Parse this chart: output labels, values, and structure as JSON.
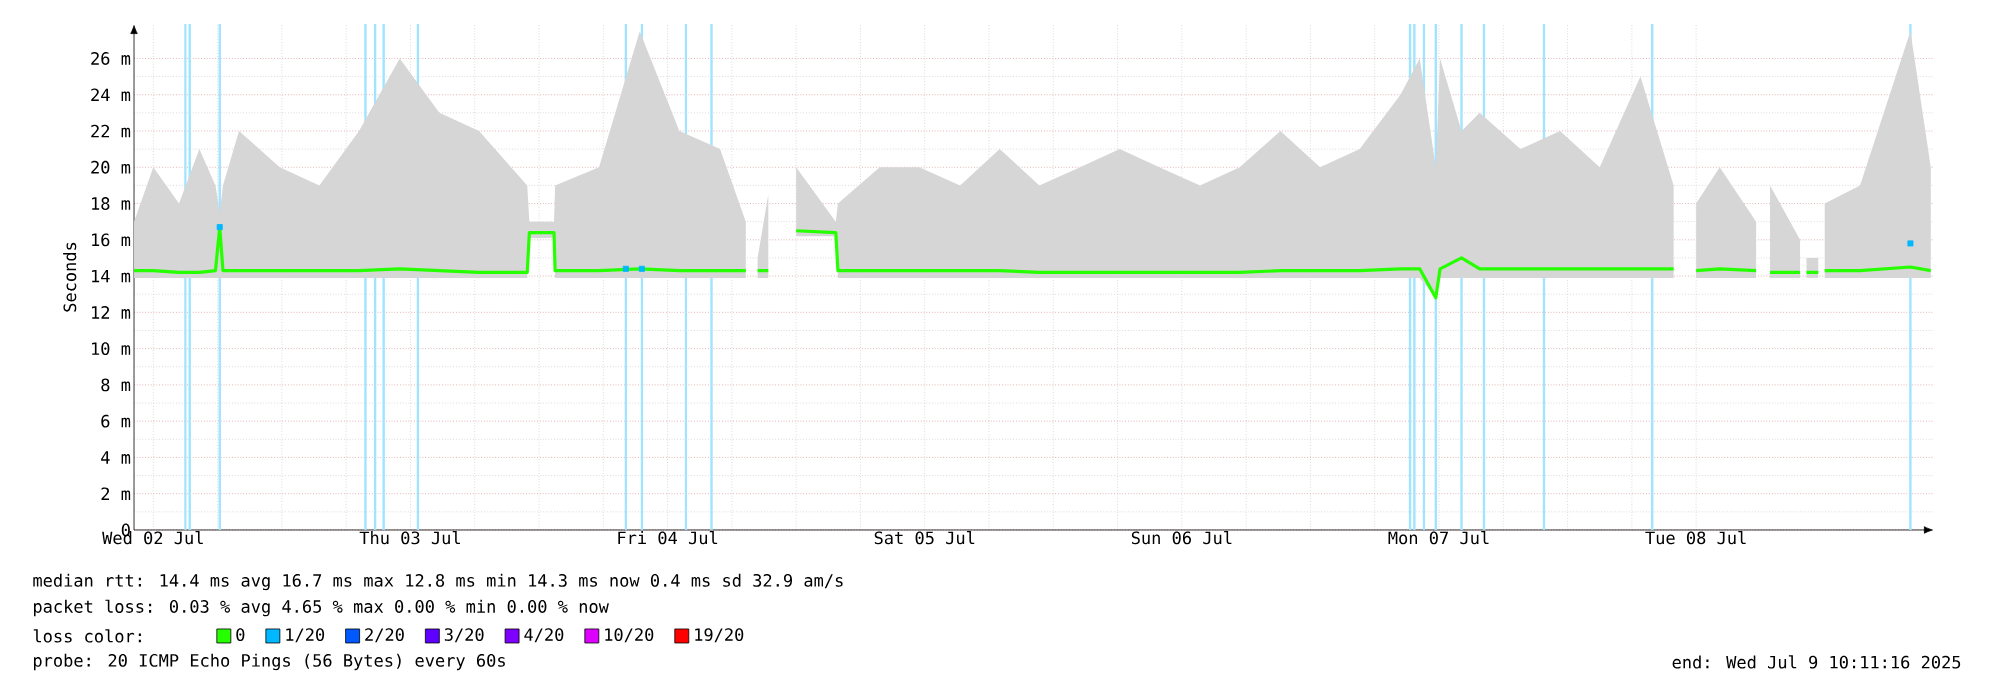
{
  "chart_data": {
    "type": "line",
    "ylabel": "Seconds",
    "xlim": [
      "2025-07-02T10:12",
      "2025-07-09T10:12"
    ],
    "ylim": [
      0,
      27.9
    ],
    "xticks": [
      {
        "value": "2025-07-02T12:00",
        "label": "Wed 02 Jul"
      },
      {
        "value": "2025-07-03T12:00",
        "label": "Thu 03 Jul"
      },
      {
        "value": "2025-07-04T12:00",
        "label": "Fri 04 Jul"
      },
      {
        "value": "2025-07-05T12:00",
        "label": "Sat 05 Jul"
      },
      {
        "value": "2025-07-06T12:00",
        "label": "Sun 06 Jul"
      },
      {
        "value": "2025-07-07T12:00",
        "label": "Mon 07 Jul"
      },
      {
        "value": "2025-07-08T12:00",
        "label": "Tue 08 Jul"
      }
    ],
    "yticks": [
      {
        "value": 0,
        "label": "0"
      },
      {
        "value": 2,
        "label": "2 m"
      },
      {
        "value": 4,
        "label": "4 m"
      },
      {
        "value": 6,
        "label": "6 m"
      },
      {
        "value": 8,
        "label": "8 m"
      },
      {
        "value": 10,
        "label": "10 m"
      },
      {
        "value": 12,
        "label": "12 m"
      },
      {
        "value": 14,
        "label": "14 m"
      },
      {
        "value": 16,
        "label": "16 m"
      },
      {
        "value": 18,
        "label": "18 m"
      },
      {
        "value": 20,
        "label": "20 m"
      },
      {
        "value": 22,
        "label": "22 m"
      },
      {
        "value": 24,
        "label": "24 m"
      },
      {
        "value": 26,
        "label": "26 m"
      }
    ],
    "grid": true,
    "legend": "bottom",
    "legend_title": "loss color:",
    "x": [
      "2025-07-02T10:12",
      "2025-07-02T12:00",
      "2025-07-02T14:24",
      "2025-07-02T16:18",
      "2025-07-02T17:48",
      "2025-07-02T18:12",
      "2025-07-02T18:30",
      "2025-07-02T20:00",
      "2025-07-02T23:48",
      "2025-07-03T03:30",
      "2025-07-03T07:12",
      "2025-07-03T11:00",
      "2025-07-03T14:42",
      "2025-07-03T18:24",
      "2025-07-03T22:54",
      "2025-07-03T23:06",
      "2025-07-04T01:24",
      "2025-07-04T01:30",
      "2025-07-04T05:36",
      "2025-07-04T09:24",
      "2025-07-04T13:06",
      "2025-07-04T16:54",
      "2025-07-04T19:18",
      "2025-07-04T20:00",
      "2025-07-04T20:24",
      "2025-07-04T21:24",
      "2025-07-04T22:36",
      "2025-07-05T00:00",
      "2025-07-05T03:42",
      "2025-07-05T03:54",
      "2025-07-05T07:48",
      "2025-07-05T11:30",
      "2025-07-05T15:18",
      "2025-07-05T19:00",
      "2025-07-05T22:42",
      "2025-07-06T02:30",
      "2025-07-06T06:12",
      "2025-07-06T09:54",
      "2025-07-06T13:42",
      "2025-07-06T17:24",
      "2025-07-06T21:12",
      "2025-07-07T00:54",
      "2025-07-07T04:36",
      "2025-07-07T08:24",
      "2025-07-07T10:12",
      "2025-07-07T11:42",
      "2025-07-07T12:06",
      "2025-07-07T14:06",
      "2025-07-07T15:48",
      "2025-07-07T19:36",
      "2025-07-07T23:18",
      "2025-07-08T03:00",
      "2025-07-08T06:48",
      "2025-07-08T09:54",
      "2025-07-08T11:00",
      "2025-07-08T12:00",
      "2025-07-08T14:12",
      "2025-07-08T17:36",
      "2025-07-08T18:18",
      "2025-07-08T18:54",
      "2025-07-08T21:42",
      "2025-07-08T22:06",
      "2025-07-08T22:18",
      "2025-07-08T23:24",
      "2025-07-08T23:36",
      "2025-07-09T00:00",
      "2025-07-09T03:18",
      "2025-07-09T08:00",
      "2025-07-09T09:54"
    ],
    "series": [
      {
        "name": "0",
        "color": "#26ff00",
        "values": [
          14.3,
          14.3,
          14.2,
          14.2,
          14.3,
          16.7,
          14.3,
          14.3,
          14.3,
          14.3,
          14.3,
          14.4,
          14.3,
          14.2,
          14.2,
          16.4,
          16.4,
          14.3,
          14.3,
          14.4,
          14.3,
          14.3,
          14.3,
          null,
          14.3,
          14.3,
          null,
          16.5,
          16.4,
          14.3,
          14.3,
          14.3,
          14.3,
          14.3,
          14.2,
          14.2,
          14.2,
          14.2,
          14.2,
          14.2,
          14.3,
          14.3,
          14.3,
          14.4,
          14.4,
          12.8,
          14.4,
          15.0,
          14.4,
          14.4,
          14.4,
          14.4,
          14.4,
          14.4,
          null,
          14.3,
          14.4,
          14.3,
          null,
          14.2,
          14.2,
          null,
          14.2,
          14.2,
          null,
          14.3,
          14.3,
          14.5,
          14.3
        ],
        "lower": [
          13.9,
          13.9,
          13.9,
          13.9,
          13.9,
          13.9,
          13.9,
          13.9,
          13.9,
          13.9,
          13.9,
          13.9,
          13.9,
          13.9,
          13.9,
          16.1,
          16.1,
          13.9,
          13.9,
          13.9,
          13.9,
          13.9,
          13.9,
          null,
          13.9,
          13.9,
          null,
          16.2,
          16.2,
          13.9,
          13.9,
          13.9,
          13.9,
          13.9,
          13.9,
          13.9,
          13.9,
          13.9,
          13.9,
          13.9,
          13.9,
          13.9,
          13.9,
          13.9,
          13.9,
          12.8,
          13.9,
          13.9,
          13.9,
          13.9,
          13.9,
          13.9,
          13.9,
          13.9,
          null,
          13.9,
          13.9,
          13.9,
          null,
          13.9,
          13.9,
          null,
          13.9,
          13.9,
          null,
          13.9,
          13.9,
          13.9,
          13.9
        ],
        "upper": [
          17,
          20,
          18,
          21,
          19,
          17.5,
          19,
          22,
          20,
          19,
          22,
          26,
          23,
          22,
          19,
          17,
          17,
          19,
          20,
          27.5,
          22,
          21,
          17,
          null,
          15,
          18.5,
          null,
          20,
          17,
          18,
          20,
          20,
          19,
          21,
          19,
          20,
          21,
          20,
          19,
          20,
          22,
          20,
          21,
          24,
          26,
          20,
          26,
          22,
          23,
          21,
          22,
          20,
          25,
          19,
          null,
          18,
          20,
          17,
          null,
          19,
          16,
          null,
          15,
          15,
          null,
          18,
          19,
          27.5,
          20
        ]
      },
      {
        "name": "1/20",
        "color": "#00b8ff",
        "type": "scatter",
        "marker": "square",
        "x": [
          "2025-07-02T18:12",
          "2025-07-04T08:06",
          "2025-07-04T09:36",
          "2025-07-09T08:00"
        ],
        "values": [
          16.7,
          14.4,
          14.4,
          15.8
        ]
      },
      {
        "name": "2/20",
        "color": "#0059ff",
        "type": "scatter",
        "marker": "square",
        "values": [
          null,
          null,
          null,
          null,
          null,
          null,
          null,
          null,
          null,
          null,
          null,
          null,
          null,
          null,
          null,
          null,
          null,
          null,
          null,
          null,
          null,
          null,
          null,
          null,
          null,
          null,
          null,
          null,
          null,
          null,
          null,
          null,
          null,
          null,
          null,
          null,
          null,
          null,
          null,
          null,
          null,
          null,
          null,
          null,
          null,
          null,
          null,
          null,
          null,
          null,
          null,
          null,
          null,
          null,
          null,
          null,
          null,
          null,
          null,
          null,
          null,
          null,
          null,
          null,
          null,
          null,
          null,
          null,
          null
        ]
      },
      {
        "name": "3/20",
        "color": "#5e00ff",
        "type": "scatter",
        "marker": "square",
        "values": [
          null,
          null,
          null,
          null,
          null,
          null,
          null,
          null,
          null,
          null,
          null,
          null,
          null,
          null,
          null,
          null,
          null,
          null,
          null,
          null,
          null,
          null,
          null,
          null,
          null,
          null,
          null,
          null,
          null,
          null,
          null,
          null,
          null,
          null,
          null,
          null,
          null,
          null,
          null,
          null,
          null,
          null,
          null,
          null,
          null,
          null,
          null,
          null,
          null,
          null,
          null,
          null,
          null,
          null,
          null,
          null,
          null,
          null,
          null,
          null,
          null,
          null,
          null,
          null,
          null,
          null,
          null,
          null,
          null
        ]
      },
      {
        "name": "4/20",
        "color": "#7e00ff",
        "type": "scatter",
        "marker": "square",
        "values": [
          null,
          null,
          null,
          null,
          null,
          null,
          null,
          null,
          null,
          null,
          null,
          null,
          null,
          null,
          null,
          null,
          null,
          null,
          null,
          null,
          null,
          null,
          null,
          null,
          null,
          null,
          null,
          null,
          null,
          null,
          null,
          null,
          null,
          null,
          null,
          null,
          null,
          null,
          null,
          null,
          null,
          null,
          null,
          null,
          null,
          null,
          null,
          null,
          null,
          null,
          null,
          null,
          null,
          null,
          null,
          null,
          null,
          null,
          null,
          null,
          null,
          null,
          null,
          null,
          null,
          null,
          null,
          null,
          null
        ]
      },
      {
        "name": "10/20",
        "color": "#dd00ff",
        "type": "scatter",
        "marker": "square",
        "values": [
          null,
          null,
          null,
          null,
          null,
          null,
          null,
          null,
          null,
          null,
          null,
          null,
          null,
          null,
          null,
          null,
          null,
          null,
          null,
          null,
          null,
          null,
          null,
          null,
          null,
          null,
          null,
          null,
          null,
          null,
          null,
          null,
          null,
          null,
          null,
          null,
          null,
          null,
          null,
          null,
          null,
          null,
          null,
          null,
          null,
          null,
          null,
          null,
          null,
          null,
          null,
          null,
          null,
          null,
          null,
          null,
          null,
          null,
          null,
          null,
          null,
          null,
          null,
          null,
          null,
          null,
          null,
          null,
          null
        ]
      },
      {
        "name": "19/20",
        "color": "#ff0000",
        "type": "scatter",
        "marker": "square",
        "values": [
          null,
          null,
          null,
          null,
          null,
          null,
          null,
          null,
          null,
          null,
          null,
          null,
          null,
          null,
          null,
          null,
          null,
          null,
          null,
          null,
          null,
          null,
          null,
          null,
          null,
          null,
          null,
          null,
          null,
          null,
          null,
          null,
          null,
          null,
          null,
          null,
          null,
          null,
          null,
          null,
          null,
          null,
          null,
          null,
          null,
          null,
          null,
          null,
          null,
          null,
          null,
          null,
          null,
          null,
          null,
          null,
          null,
          null,
          null,
          null,
          null,
          null,
          null,
          null,
          null,
          null,
          null,
          null,
          null
        ]
      }
    ],
    "ref_lines": [
      {
        "axis": "x",
        "value": "2025-07-02T15:00",
        "color": "#a0e4ff"
      },
      {
        "axis": "x",
        "value": "2025-07-02T15:24",
        "color": "#a0e4ff"
      },
      {
        "axis": "x",
        "value": "2025-07-02T18:12",
        "color": "#a0e4ff"
      },
      {
        "axis": "x",
        "value": "2025-07-03T07:48",
        "color": "#a0e4ff"
      },
      {
        "axis": "x",
        "value": "2025-07-03T08:42",
        "color": "#a0e4ff"
      },
      {
        "axis": "x",
        "value": "2025-07-03T09:30",
        "color": "#a0e4ff"
      },
      {
        "axis": "x",
        "value": "2025-07-03T12:42",
        "color": "#a0e4ff"
      },
      {
        "axis": "x",
        "value": "2025-07-04T08:06",
        "color": "#a0e4ff"
      },
      {
        "axis": "x",
        "value": "2025-07-04T09:36",
        "color": "#a0e4ff"
      },
      {
        "axis": "x",
        "value": "2025-07-04T13:42",
        "color": "#a0e4ff"
      },
      {
        "axis": "x",
        "value": "2025-07-04T16:06",
        "color": "#a0e4ff"
      },
      {
        "axis": "x",
        "value": "2025-07-07T09:18",
        "color": "#a0e4ff"
      },
      {
        "axis": "x",
        "value": "2025-07-07T09:42",
        "color": "#a0e4ff"
      },
      {
        "axis": "x",
        "value": "2025-07-07T10:36",
        "color": "#a0e4ff"
      },
      {
        "axis": "x",
        "value": "2025-07-07T11:42",
        "color": "#a0e4ff"
      },
      {
        "axis": "x",
        "value": "2025-07-07T14:06",
        "color": "#a0e4ff"
      },
      {
        "axis": "x",
        "value": "2025-07-07T16:12",
        "color": "#a0e4ff"
      },
      {
        "axis": "x",
        "value": "2025-07-07T21:48",
        "color": "#a0e4ff"
      },
      {
        "axis": "x",
        "value": "2025-07-08T07:54",
        "color": "#a0e4ff"
      },
      {
        "axis": "x",
        "value": "2025-07-09T08:00",
        "color": "#a0e4ff"
      }
    ],
    "annotations": [
      "median rtt:  14.4 ms avg  16.7 ms max  12.8 ms min  14.3 ms now  0.4 ms sd  32.9   am/s",
      "packet loss: 0.03 % avg  4.65 % max  0.00 % min  0.00 % now",
      "probe:       20 ICMP Echo Pings (56 Bytes) every 60s",
      "end: Wed Jul  9 10:11:16 2025"
    ]
  }
}
